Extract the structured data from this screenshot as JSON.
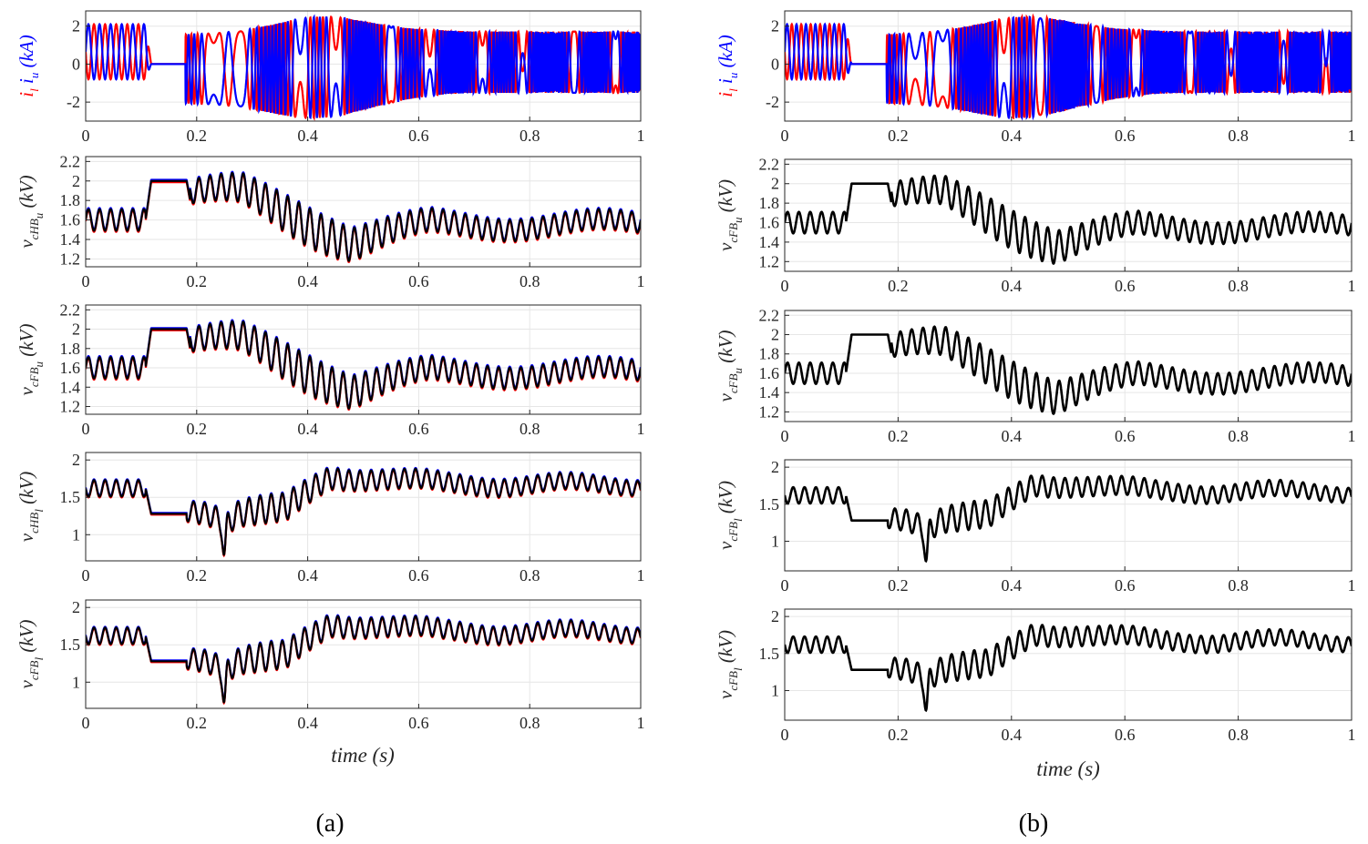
{
  "figure": {
    "captions": {
      "a": "(a)",
      "b": "(b)"
    },
    "xlabel": "time (s)"
  },
  "chart_data": [
    {
      "panel": "a",
      "row": 1,
      "type": "line",
      "ylabel": {
        "parts": [
          {
            "text": "i",
            "color": "#ff0000"
          },
          {
            "text": "l",
            "color": "#ff0000",
            "sub": true
          },
          {
            "text": " i",
            "color": "#0000ff"
          },
          {
            "text": "u",
            "color": "#0000ff",
            "sub": true
          },
          {
            "text": " (kA)",
            "color": "#0000ff"
          }
        ]
      },
      "xlim": [
        0,
        1
      ],
      "ylim": [
        -3,
        2.8
      ],
      "xticks": [
        0,
        0.2,
        0.4,
        0.6,
        0.8,
        1
      ],
      "yticks": [
        -2,
        0,
        2
      ],
      "series": [
        {
          "name": "i_l",
          "color": "#ff0000",
          "kind": "current",
          "phase": 3.14159,
          "fast": false
        },
        {
          "name": "i_u",
          "color": "#0000ff",
          "kind": "current",
          "phase": 0,
          "fast": false
        }
      ]
    },
    {
      "panel": "a",
      "row": 2,
      "type": "line",
      "ylabel": {
        "parts": [
          {
            "text": "v",
            "color": "#262626"
          },
          {
            "text": "cHB",
            "color": "#262626",
            "sub": true
          },
          {
            "text": "u",
            "color": "#262626",
            "sub2": true
          },
          {
            "text": " (kV)",
            "color": "#262626"
          }
        ]
      },
      "xlim": [
        0,
        1
      ],
      "ylim": [
        1.12,
        2.25
      ],
      "xticks": [
        0,
        0.2,
        0.4,
        0.6,
        0.8,
        1
      ],
      "yticks": [
        1.2,
        1.4,
        1.6,
        1.8,
        2,
        2.2
      ],
      "series": [
        {
          "name": "blue",
          "color": "#0000ff",
          "kind": "upper",
          "offset": 0.012
        },
        {
          "name": "red",
          "color": "#ff0000",
          "kind": "upper",
          "offset": -0.012
        },
        {
          "name": "black",
          "color": "#000000",
          "kind": "upper",
          "offset": 0
        }
      ]
    },
    {
      "panel": "a",
      "row": 3,
      "type": "line",
      "ylabel": {
        "parts": [
          {
            "text": "v",
            "color": "#262626"
          },
          {
            "text": "cFB",
            "color": "#262626",
            "sub": true
          },
          {
            "text": "u",
            "color": "#262626",
            "sub2": true
          },
          {
            "text": " (kV)",
            "color": "#262626"
          }
        ]
      },
      "xlim": [
        0,
        1
      ],
      "ylim": [
        1.12,
        2.25
      ],
      "xticks": [
        0,
        0.2,
        0.4,
        0.6,
        0.8,
        1
      ],
      "yticks": [
        1.2,
        1.4,
        1.6,
        1.8,
        2,
        2.2
      ],
      "series": [
        {
          "name": "blue",
          "color": "#0000ff",
          "kind": "upper",
          "offset": 0.012
        },
        {
          "name": "red",
          "color": "#ff0000",
          "kind": "upper",
          "offset": -0.012
        },
        {
          "name": "black",
          "color": "#000000",
          "kind": "upper",
          "offset": 0
        }
      ]
    },
    {
      "panel": "a",
      "row": 4,
      "type": "line",
      "ylabel": {
        "parts": [
          {
            "text": "v",
            "color": "#262626"
          },
          {
            "text": "cHB",
            "color": "#262626",
            "sub": true
          },
          {
            "text": "l",
            "color": "#262626",
            "sub2": true
          },
          {
            "text": " (kV)",
            "color": "#262626"
          }
        ]
      },
      "xlim": [
        0,
        1
      ],
      "ylim": [
        0.65,
        2.1
      ],
      "xticks": [
        0,
        0.2,
        0.4,
        0.6,
        0.8,
        1
      ],
      "yticks": [
        1,
        1.5,
        2
      ],
      "series": [
        {
          "name": "blue",
          "color": "#0000ff",
          "kind": "lower",
          "offset": 0.012
        },
        {
          "name": "red",
          "color": "#ff0000",
          "kind": "lower",
          "offset": -0.012
        },
        {
          "name": "black",
          "color": "#000000",
          "kind": "lower",
          "offset": 0
        }
      ]
    },
    {
      "panel": "a",
      "row": 5,
      "type": "line",
      "ylabel": {
        "parts": [
          {
            "text": "v",
            "color": "#262626"
          },
          {
            "text": "cFB",
            "color": "#262626",
            "sub": true
          },
          {
            "text": "l",
            "color": "#262626",
            "sub2": true
          },
          {
            "text": " (kV)",
            "color": "#262626"
          }
        ]
      },
      "xlim": [
        0,
        1
      ],
      "ylim": [
        0.65,
        2.1
      ],
      "xticks": [
        0,
        0.2,
        0.4,
        0.6,
        0.8,
        1
      ],
      "yticks": [
        1,
        1.5,
        2
      ],
      "series": [
        {
          "name": "blue",
          "color": "#0000ff",
          "kind": "lower",
          "offset": 0.012
        },
        {
          "name": "red",
          "color": "#ff0000",
          "kind": "lower",
          "offset": -0.012
        },
        {
          "name": "black",
          "color": "#000000",
          "kind": "lower",
          "offset": 0
        }
      ]
    },
    {
      "panel": "b",
      "row": 1,
      "type": "line",
      "ylabel": {
        "parts": [
          {
            "text": "i",
            "color": "#ff0000"
          },
          {
            "text": "l",
            "color": "#ff0000",
            "sub": true
          },
          {
            "text": " i",
            "color": "#0000ff"
          },
          {
            "text": "u",
            "color": "#0000ff",
            "sub": true
          },
          {
            "text": " (kA)",
            "color": "#0000ff"
          }
        ]
      },
      "xlim": [
        0,
        1
      ],
      "ylim": [
        -3,
        2.8
      ],
      "xticks": [
        0,
        0.2,
        0.4,
        0.6,
        0.8,
        1
      ],
      "yticks": [
        -2,
        0,
        2
      ],
      "series": [
        {
          "name": "i_l",
          "color": "#ff0000",
          "kind": "current",
          "phase": 3.14159,
          "fast": true
        },
        {
          "name": "i_u",
          "color": "#0000ff",
          "kind": "current",
          "phase": 0,
          "fast": true
        }
      ]
    },
    {
      "panel": "b",
      "row": 2,
      "type": "line",
      "ylabel": {
        "parts": [
          {
            "text": "v",
            "color": "#262626"
          },
          {
            "text": "cFB",
            "color": "#262626",
            "sub": true
          },
          {
            "text": "u",
            "color": "#262626",
            "sub2": true
          },
          {
            "text": " (kV)",
            "color": "#262626"
          }
        ]
      },
      "xlim": [
        0,
        1
      ],
      "ylim": [
        1.1,
        2.25
      ],
      "xticks": [
        0,
        0.2,
        0.4,
        0.6,
        0.8,
        1
      ],
      "yticks": [
        1.2,
        1.4,
        1.6,
        1.8,
        2,
        2.2
      ],
      "series": [
        {
          "name": "black",
          "color": "#000000",
          "kind": "upper",
          "offset": 0,
          "thick": true
        }
      ]
    },
    {
      "panel": "b",
      "row": 3,
      "type": "line",
      "ylabel": {
        "parts": [
          {
            "text": "v",
            "color": "#262626"
          },
          {
            "text": "cFB",
            "color": "#262626",
            "sub": true
          },
          {
            "text": "u",
            "color": "#262626",
            "sub2": true
          },
          {
            "text": " (kV)",
            "color": "#262626"
          }
        ]
      },
      "xlim": [
        0,
        1
      ],
      "ylim": [
        1.1,
        2.25
      ],
      "xticks": [
        0,
        0.2,
        0.4,
        0.6,
        0.8,
        1
      ],
      "yticks": [
        1.2,
        1.4,
        1.6,
        1.8,
        2,
        2.2
      ],
      "series": [
        {
          "name": "black",
          "color": "#000000",
          "kind": "upper",
          "offset": 0,
          "thick": true
        }
      ]
    },
    {
      "panel": "b",
      "row": 4,
      "type": "line",
      "ylabel": {
        "parts": [
          {
            "text": "v",
            "color": "#262626"
          },
          {
            "text": "cFB",
            "color": "#262626",
            "sub": true
          },
          {
            "text": "l",
            "color": "#262626",
            "sub2": true
          },
          {
            "text": " (kV)",
            "color": "#262626"
          }
        ]
      },
      "xlim": [
        0,
        1
      ],
      "ylim": [
        0.6,
        2.1
      ],
      "xticks": [
        0,
        0.2,
        0.4,
        0.6,
        0.8,
        1
      ],
      "yticks": [
        1,
        1.5,
        2
      ],
      "series": [
        {
          "name": "black",
          "color": "#000000",
          "kind": "lower",
          "offset": 0,
          "thick": true
        }
      ]
    },
    {
      "panel": "b",
      "row": 5,
      "type": "line",
      "ylabel": {
        "parts": [
          {
            "text": "v",
            "color": "#262626"
          },
          {
            "text": "cFB",
            "color": "#262626",
            "sub": true
          },
          {
            "text": "l",
            "color": "#262626",
            "sub2": true
          },
          {
            "text": " (kV)",
            "color": "#262626"
          }
        ]
      },
      "xlim": [
        0,
        1
      ],
      "ylim": [
        0.6,
        2.1
      ],
      "xticks": [
        0,
        0.2,
        0.4,
        0.6,
        0.8,
        1
      ],
      "yticks": [
        1,
        1.5,
        2
      ],
      "series": [
        {
          "name": "black",
          "color": "#000000",
          "kind": "lower",
          "offset": 0,
          "thick": true
        }
      ]
    }
  ]
}
